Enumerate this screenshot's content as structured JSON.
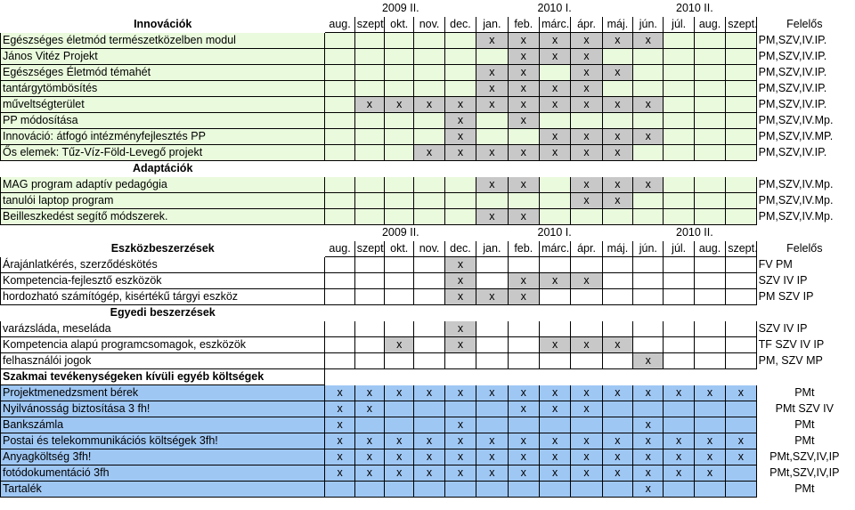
{
  "colors": {
    "green": "#eafbdd",
    "gray": "#c8c8c8",
    "blue": "#9fc7f4"
  },
  "header1": {
    "title": "Innovációk",
    "years": [
      "2009 II.",
      "2010 I.",
      "2010 II."
    ],
    "months": [
      "aug.",
      "szept.",
      "okt.",
      "nov.",
      "dec.",
      "jan.",
      "feb.",
      "márc.",
      "ápr.",
      "máj.",
      "jún.",
      "júl.",
      "aug.",
      "szept."
    ],
    "owner_label": "Felelős"
  },
  "innovaciok": [
    {
      "name": "Egészséges életmód természetközelben modul",
      "owner": "PM,SZV,IV.IP.",
      "marks": [
        5,
        6,
        7,
        8,
        9,
        10
      ]
    },
    {
      "name": "János Vitéz Projekt",
      "owner": "PM,SZV,IV.IP.",
      "marks": [
        6,
        7,
        8
      ]
    },
    {
      "name": "Egészséges Életmód témahét",
      "owner": "PM,SZV,IV.IP.",
      "marks": [
        5,
        6,
        8,
        9
      ]
    },
    {
      "name": "tantárgytömbösítés",
      "owner": "PM,SZV,IV.IP.",
      "marks": [
        5,
        6,
        7,
        8
      ]
    },
    {
      "name": "műveltségterület",
      "owner": "PM,SZV,IV.IP.",
      "marks": [
        1,
        2,
        3,
        4,
        5,
        6,
        7,
        8,
        9,
        10
      ]
    },
    {
      "name": "PP módosítása",
      "owner": "PM,SZV,IV.Mp.",
      "marks": [
        4,
        6
      ]
    },
    {
      "name": "Innováció: átfogó intézményfejlesztés PP",
      "owner": "PM,SZV,IV.MP.",
      "marks": [
        4,
        7,
        8,
        9,
        10
      ]
    },
    {
      "name": "Ős elemek: Tűz-Víz-Föld-Levegő projekt",
      "owner": "PM,SZV,IV.IP.",
      "marks": [
        3,
        4,
        5,
        6,
        7,
        8,
        9
      ]
    }
  ],
  "adaptaciok_title": "Adaptációk",
  "adaptaciok": [
    {
      "name": "MAG program adaptív pedagógia",
      "owner": "PM,SZV,IV.Mp.",
      "marks": [
        5,
        6,
        8,
        9,
        10
      ]
    },
    {
      "name": "tanulói laptop program",
      "owner": "PM,SZV,IV.Mp.",
      "marks": [
        8,
        9
      ]
    },
    {
      "name": "Beilleszkedést segítő módszerek.",
      "owner": "PM,SZV,IV.Mp.",
      "marks": [
        5,
        6
      ]
    }
  ],
  "header2": {
    "title": "Eszközbeszerzések",
    "years": [
      "2009 II.",
      "2010 I.",
      "2010 II."
    ],
    "months": [
      "aug.",
      "szept.",
      "okt.",
      "nov.",
      "dec.",
      "jan.",
      "feb.",
      "márc.",
      "ápr.",
      "máj.",
      "jún.",
      "júl.",
      "aug.",
      "szept."
    ],
    "owner_label": "Felelős"
  },
  "eszkoz": [
    {
      "name": "Árajánlatkérés, szerződéskötés",
      "owner": "FV PM",
      "marks": [
        4
      ]
    },
    {
      "name": "Kompetencia-fejlesztő eszközök",
      "owner": "SZV IV IP",
      "marks": [
        4,
        6,
        7,
        8
      ]
    },
    {
      "name": "hordozható számítógép, kisértékű tárgyi eszköz",
      "owner": "PM SZV IP",
      "marks": [
        4,
        5,
        6
      ]
    }
  ],
  "egyedi_title": "Egyedi beszerzések",
  "egyedi": [
    {
      "name": "varázsláda, meseláda",
      "owner": "SZV IV IP",
      "marks": [
        4
      ]
    },
    {
      "name": "Kompetencia alapú programcsomagok, eszközök",
      "owner": "TF SZV IV IP",
      "marks": [
        2,
        4,
        7,
        8,
        9
      ]
    },
    {
      "name": "felhasználói jogok",
      "owner": "PM, SZV MP",
      "marks": [
        10
      ]
    }
  ],
  "szakmai_title": "Szakmai tevékenységeken kívüli egyéb költségek",
  "koltsegek": [
    {
      "name": "Projektmenedzsment bérek",
      "owner": "PMt",
      "marks": [
        0,
        1,
        2,
        3,
        4,
        5,
        6,
        7,
        8,
        9,
        10,
        11,
        12,
        13
      ]
    },
    {
      "name": "Nyilvánosság biztosítása 3 fh!",
      "owner": "PMt SZV IV",
      "marks": [
        0,
        1,
        6,
        7,
        8
      ]
    },
    {
      "name": "Bankszámla",
      "owner": "PMt",
      "marks": [
        0,
        4,
        10
      ]
    },
    {
      "name": "Postai és telekommunikációs költségek 3fh!",
      "owner": "PMt",
      "marks": [
        0,
        1,
        2,
        3,
        4,
        5,
        6,
        7,
        8,
        9,
        10,
        11,
        12,
        13
      ]
    },
    {
      "name": "Anyagköltség 3fh!",
      "owner": "PMt,SZV,IV,IP",
      "marks": [
        0,
        1,
        2,
        3,
        4,
        5,
        6,
        7,
        8,
        9,
        10,
        11,
        12,
        13
      ]
    },
    {
      "name": "fotódokumentáció 3fh",
      "owner": "PMt,SZV,IV,IP",
      "marks": [
        0,
        1,
        2,
        3,
        4,
        5,
        6,
        7,
        8,
        9,
        10,
        11,
        12
      ]
    },
    {
      "name": "Tartalék",
      "owner": "PMt",
      "marks": [
        10
      ]
    }
  ],
  "mark_symbol": "x"
}
